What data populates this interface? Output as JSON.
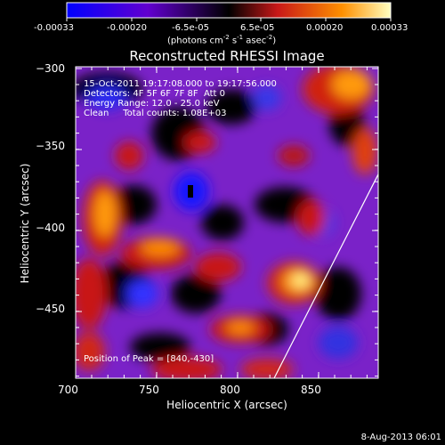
{
  "colorbar": {
    "ticks": [
      "-0.00033",
      "-0.00020",
      "-6.5e-05",
      "6.5e-05",
      "0.00020",
      "0.00033"
    ],
    "units_prefix": "(photons cm",
    "units_exp1": "-2",
    "units_mid": " s",
    "units_exp2": "-1",
    "units_mid2": " asec",
    "units_exp3": "-2",
    "units_suffix": ")"
  },
  "plot": {
    "title": "Reconstructed RHESSI Image",
    "xlabel": "Heliocentric X (arcsec)",
    "ylabel": "Heliocentric Y (arcsec)",
    "xticks": [
      "700",
      "750",
      "800",
      "850"
    ],
    "yticks": [
      "−300",
      "−350",
      "−400",
      "−450"
    ],
    "xlim": [
      700,
      890
    ],
    "ylim": [
      -490,
      -300
    ]
  },
  "overlay": {
    "time_range": "15-Oct-2011 19:17:08.000 to 19:17:56.000",
    "detectors": "Detectors: 4F 5F 6F 7F 8F  Att 0",
    "energy": "Energy Range: 12.0 - 25.0 keV",
    "method": "Clean     Total counts: 1.08E+03",
    "peak": "Position of Peak = [840,-430]"
  },
  "footer": {
    "date": "8-Aug-2013 06:01"
  },
  "colors": {
    "background": "#000000",
    "axes": "#ffffff",
    "colormap": [
      "#0000ff",
      "#6a00b8",
      "#000000",
      "#c81818",
      "#ff8a00",
      "#ffff80"
    ]
  }
}
